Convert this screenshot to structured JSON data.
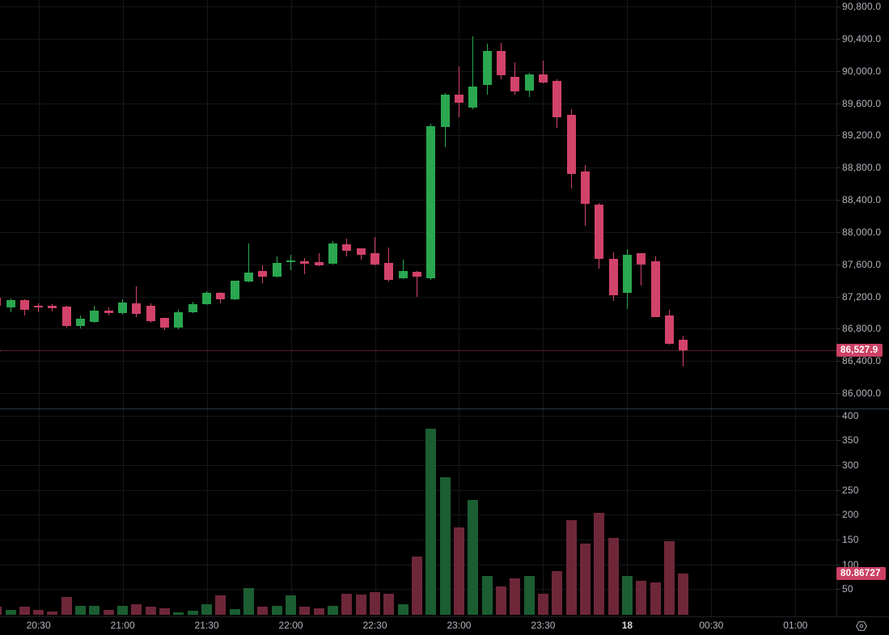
{
  "colors": {
    "background": "#000000",
    "grid": "#161719",
    "up": "#2aa750",
    "down": "#d2436a",
    "volume_up": "#1b5e31",
    "volume_down": "#6e2739",
    "badge_bg": "#cb4164",
    "badge_text": "#ffffff",
    "axis_text": "#b2b5be",
    "axis_text_bright": "#d6d8dc",
    "pane_separator": "#2e3b47",
    "axis_border": "#1e2228",
    "icon": "#8a8d94"
  },
  "price_axis": {
    "labels": [
      {
        "text": "90,800.0",
        "value": 90800
      },
      {
        "text": "90,400.0",
        "value": 90400
      },
      {
        "text": "90,000.0",
        "value": 90000
      },
      {
        "text": "89,600.0",
        "value": 89600
      },
      {
        "text": "89,200.0",
        "value": 89200
      },
      {
        "text": "88,800.0",
        "value": 88800
      },
      {
        "text": "88,400.0",
        "value": 88400
      },
      {
        "text": "88,000.0",
        "value": 88000
      },
      {
        "text": "87,600.0",
        "value": 87600
      },
      {
        "text": "87,200.0",
        "value": 87200
      },
      {
        "text": "86,800.0",
        "value": 86800
      },
      {
        "text": "86,400.0",
        "value": 86400
      },
      {
        "text": "86,000.0",
        "value": 86000
      }
    ],
    "current_price_label": "86,527.9",
    "current_price_value": 86527.9
  },
  "volume_axis": {
    "labels": [
      {
        "text": "400",
        "value": 400
      },
      {
        "text": "350",
        "value": 350
      },
      {
        "text": "300",
        "value": 300
      },
      {
        "text": "250",
        "value": 250
      },
      {
        "text": "200",
        "value": 200
      },
      {
        "text": "150",
        "value": 150
      },
      {
        "text": "100",
        "value": 100
      },
      {
        "text": "50",
        "value": 50
      }
    ],
    "current_volume_label": "80.86727",
    "current_volume_value": 80.86727
  },
  "time_axis": {
    "ticks": [
      {
        "label": "20:30",
        "i": 2,
        "bold": false
      },
      {
        "label": "21:00",
        "i": 8,
        "bold": false
      },
      {
        "label": "21:30",
        "i": 14,
        "bold": false
      },
      {
        "label": "22:00",
        "i": 20,
        "bold": false
      },
      {
        "label": "22:30",
        "i": 26,
        "bold": false
      },
      {
        "label": "23:00",
        "i": 32,
        "bold": false
      },
      {
        "label": "23:30",
        "i": 38,
        "bold": false
      },
      {
        "label": "18",
        "i": 44,
        "bold": true
      },
      {
        "label": "00:30",
        "i": 50,
        "bold": false
      },
      {
        "label": "01:00",
        "i": 56,
        "bold": false
      }
    ]
  },
  "chart_data": {
    "type": "candlestick-with-volume",
    "interval": "5m",
    "grid": true,
    "price_axis_range": [
      85920,
      90880
    ],
    "volume_axis_range": [
      0,
      415
    ],
    "last_price": 86527.9,
    "last_volume": 80.86727,
    "columns": [
      "slot",
      "time",
      "open",
      "high",
      "low",
      "close",
      "volume",
      "dir"
    ],
    "candles": [
      [
        -1,
        "20:15",
        87185,
        87205,
        87065,
        87085,
        14,
        "d"
      ],
      [
        0,
        "20:20",
        87065,
        87175,
        87005,
        87155,
        8,
        "u"
      ],
      [
        1,
        "20:25",
        87159,
        87165,
        86965,
        87032,
        15,
        "d"
      ],
      [
        2,
        "20:30",
        87088,
        87115,
        87005,
        87065,
        8,
        "d"
      ],
      [
        3,
        "20:35",
        87082,
        87108,
        87015,
        87058,
        5,
        "d"
      ],
      [
        4,
        "20:40",
        87075,
        87080,
        86814,
        86831,
        34,
        "d"
      ],
      [
        5,
        "20:45",
        86831,
        86964,
        86804,
        86927,
        17,
        "u"
      ],
      [
        6,
        "20:50",
        86881,
        87088,
        86875,
        87021,
        17,
        "u"
      ],
      [
        7,
        "20:55",
        87021,
        87065,
        86965,
        86997,
        8,
        "d"
      ],
      [
        8,
        "21:00",
        86997,
        87165,
        86973,
        87121,
        16,
        "u"
      ],
      [
        9,
        "21:05",
        87114,
        87322,
        86946,
        86980,
        20,
        "d"
      ],
      [
        10,
        "21:10",
        87081,
        87114,
        86871,
        86897,
        15,
        "d"
      ],
      [
        11,
        "21:15",
        86930,
        86935,
        86781,
        86814,
        12,
        "d"
      ],
      [
        12,
        "21:20",
        86814,
        87031,
        86797,
        87004,
        4,
        "u"
      ],
      [
        13,
        "21:25",
        87004,
        87137,
        86999,
        87104,
        7,
        "u"
      ],
      [
        14,
        "21:30",
        87104,
        87265,
        87094,
        87245,
        20,
        "u"
      ],
      [
        15,
        "21:35",
        87248,
        87253,
        87114,
        87165,
        38,
        "d"
      ],
      [
        16,
        "21:40",
        87165,
        87400,
        87155,
        87392,
        10,
        "u"
      ],
      [
        17,
        "21:45",
        87383,
        87858,
        87378,
        87499,
        52,
        "u"
      ],
      [
        18,
        "21:50",
        87516,
        87586,
        87365,
        87449,
        15,
        "d"
      ],
      [
        19,
        "21:55",
        87449,
        87700,
        87440,
        87617,
        16,
        "u"
      ],
      [
        20,
        "22:00",
        87627,
        87717,
        87526,
        87647,
        37,
        "u"
      ],
      [
        21,
        "22:05",
        87637,
        87674,
        87473,
        87607,
        14,
        "d"
      ],
      [
        22,
        "22:10",
        87627,
        87737,
        87580,
        87584,
        11,
        "d"
      ],
      [
        23,
        "22:15",
        87604,
        87885,
        87600,
        87858,
        16,
        "u"
      ],
      [
        24,
        "22:20",
        87851,
        87918,
        87700,
        87768,
        41,
        "d"
      ],
      [
        25,
        "22:25",
        87794,
        87800,
        87660,
        87717,
        39,
        "d"
      ],
      [
        26,
        "22:30",
        87734,
        87941,
        87588,
        87594,
        44,
        "d"
      ],
      [
        27,
        "22:35",
        87617,
        87808,
        87383,
        87406,
        41,
        "d"
      ],
      [
        28,
        "22:40",
        87426,
        87660,
        87420,
        87513,
        20,
        "u"
      ],
      [
        29,
        "22:45",
        87509,
        87515,
        87195,
        87443,
        116,
        "d"
      ],
      [
        30,
        "22:50",
        87426,
        89344,
        87406,
        89314,
        374,
        "u"
      ],
      [
        31,
        "22:55",
        89304,
        89725,
        89053,
        89705,
        276,
        "u"
      ],
      [
        32,
        "23:00",
        89708,
        90060,
        89424,
        89608,
        174,
        "d"
      ],
      [
        33,
        "23:05",
        89545,
        90428,
        89525,
        89806,
        230,
        "u"
      ],
      [
        34,
        "23:10",
        89826,
        90338,
        89705,
        90245,
        76,
        "u"
      ],
      [
        35,
        "23:15",
        90245,
        90351,
        89893,
        89943,
        56,
        "d"
      ],
      [
        36,
        "23:20",
        89926,
        90110,
        89708,
        89743,
        72,
        "d"
      ],
      [
        37,
        "23:25",
        89756,
        89977,
        89675,
        89956,
        76,
        "u"
      ],
      [
        38,
        "23:30",
        89956,
        90127,
        89846,
        89856,
        40,
        "d"
      ],
      [
        39,
        "23:35",
        89876,
        89896,
        89294,
        89424,
        87,
        "d"
      ],
      [
        40,
        "23:40",
        89454,
        89525,
        88540,
        88721,
        190,
        "d"
      ],
      [
        41,
        "23:45",
        88751,
        88832,
        88078,
        88350,
        142,
        "d"
      ],
      [
        42,
        "23:50",
        88340,
        88360,
        87546,
        87667,
        204,
        "d"
      ],
      [
        43,
        "23:55",
        87667,
        87747,
        87144,
        87215,
        154,
        "d"
      ],
      [
        44,
        "00:00",
        87245,
        87787,
        87044,
        87717,
        77,
        "u"
      ],
      [
        45,
        "00:05",
        87737,
        87742,
        87335,
        87596,
        67,
        "d"
      ],
      [
        46,
        "00:10",
        87640,
        87700,
        86940,
        86947,
        64,
        "d"
      ],
      [
        47,
        "00:15",
        86964,
        87034,
        86602,
        86612,
        147,
        "d"
      ],
      [
        48,
        "00:20",
        86662,
        86712,
        86331,
        86527.9,
        80.86727,
        "d"
      ]
    ]
  }
}
